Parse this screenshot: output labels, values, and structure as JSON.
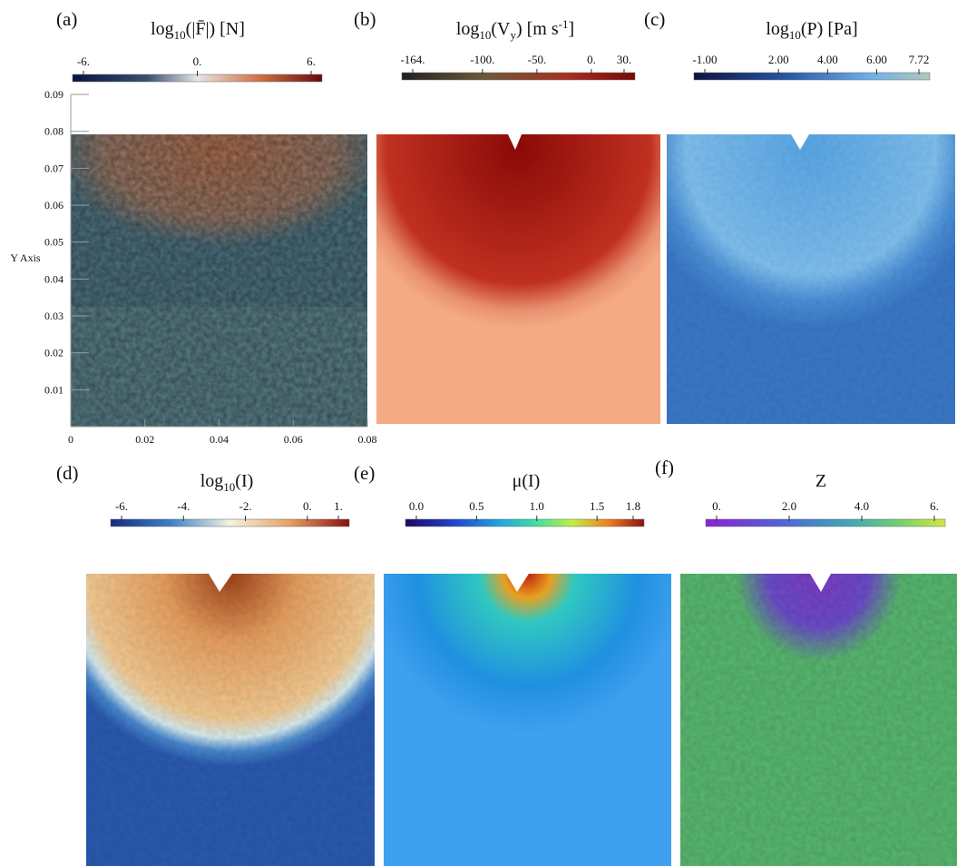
{
  "panels": [
    {
      "label": "(a)",
      "title": [
        {
          "text": "log"
        },
        {
          "text": "10",
          "sub": true
        },
        {
          "text": "(|F̄|) [N]"
        }
      ],
      "colorbar": {
        "ticks": [
          {
            "value": -6,
            "label": "-6."
          },
          {
            "value": 0,
            "label": "0."
          },
          {
            "value": 6,
            "label": "6."
          }
        ]
      }
    },
    {
      "label": "(b)",
      "title": [
        {
          "text": "log"
        },
        {
          "text": "10",
          "sub": true
        },
        {
          "text": "(V"
        },
        {
          "text": "y",
          "sub": true
        },
        {
          "text": ") [m s"
        },
        {
          "text": "-1",
          "sup": true
        },
        {
          "text": "]"
        }
      ],
      "colorbar": {
        "ticks": [
          {
            "value": -164,
            "label": "-164."
          },
          {
            "value": -100,
            "label": "-100."
          },
          {
            "value": -50,
            "label": "-50."
          },
          {
            "value": 0,
            "label": "0."
          },
          {
            "value": 30,
            "label": "30."
          }
        ]
      }
    },
    {
      "label": "(c)",
      "title": [
        {
          "text": "log"
        },
        {
          "text": "10",
          "sub": true
        },
        {
          "text": "(P) [Pa]"
        }
      ],
      "colorbar": {
        "ticks": [
          {
            "value": -1,
            "label": "-1.00"
          },
          {
            "value": 2,
            "label": "2.00"
          },
          {
            "value": 4,
            "label": "4.00"
          },
          {
            "value": 6,
            "label": "6.00"
          },
          {
            "value": 7.72,
            "label": "7.72"
          }
        ]
      }
    },
    {
      "label": "(d)",
      "title": [
        {
          "text": "log"
        },
        {
          "text": "10",
          "sub": true
        },
        {
          "text": "(I)"
        }
      ],
      "colorbar": {
        "ticks": [
          {
            "value": -6,
            "label": "-6."
          },
          {
            "value": -4,
            "label": "-4."
          },
          {
            "value": -2,
            "label": "-2."
          },
          {
            "value": 0,
            "label": "0."
          },
          {
            "value": 1,
            "label": "1."
          }
        ]
      }
    },
    {
      "label": "(e)",
      "title": [
        {
          "text": "μ(I)"
        }
      ],
      "colorbar": {
        "ticks": [
          {
            "value": 0,
            "label": "0.0"
          },
          {
            "value": 0.5,
            "label": "0.5"
          },
          {
            "value": 1,
            "label": "1.0"
          },
          {
            "value": 1.5,
            "label": "1.5"
          },
          {
            "value": 1.8,
            "label": "1.8"
          }
        ]
      }
    },
    {
      "label": "(f)",
      "title": [
        {
          "text": "Z"
        }
      ],
      "colorbar": {
        "ticks": [
          {
            "value": 0,
            "label": "0."
          },
          {
            "value": 2,
            "label": "2.0"
          },
          {
            "value": 4,
            "label": "4.0"
          },
          {
            "value": 6,
            "label": "6."
          }
        ]
      }
    }
  ],
  "axes": {
    "ylabel": "Y Axis",
    "xlim": [
      0,
      0.08
    ],
    "ylim": [
      0,
      0.09
    ],
    "xticks": [
      0,
      0.02,
      0.04,
      0.06,
      0.08
    ],
    "yticks": [
      0.01,
      0.02,
      0.03,
      0.04,
      0.05,
      0.06,
      0.07,
      0.08,
      0.09
    ]
  }
}
